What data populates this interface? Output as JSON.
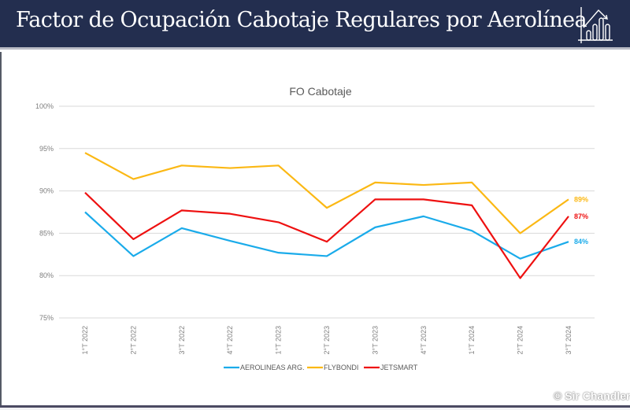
{
  "header": {
    "title": "Factor de Ocupación Cabotaje Regulares por Aerolínea",
    "icon": "chart-trend-icon"
  },
  "watermark": "© Sir Chandler",
  "chart_data": {
    "type": "line",
    "title": "FO Cabotaje",
    "xlabel": "",
    "ylabel": "",
    "ylim": [
      75,
      100
    ],
    "yticks": [
      75,
      80,
      85,
      90,
      95,
      100
    ],
    "ytick_labels": [
      "75%",
      "80%",
      "85%",
      "90%",
      "95%",
      "100%"
    ],
    "grid": true,
    "legend_position": "bottom",
    "categories": [
      "1°T 2022",
      "2°T 2022",
      "3°T 2022",
      "4°T 2022",
      "1°T 2023",
      "2°T 2023",
      "3°T 2023",
      "4°T 2023",
      "1°T 2024",
      "2°T 2024",
      "3°T 2024"
    ],
    "series": [
      {
        "name": "AEROLINEAS ARG.",
        "color": "#1aabea",
        "values": [
          87.5,
          82.3,
          85.6,
          84.1,
          82.7,
          82.3,
          85.7,
          87.0,
          85.3,
          82.0,
          84.0
        ],
        "end_label": "84%"
      },
      {
        "name": "FLYBONDI",
        "color": "#fbb814",
        "values": [
          94.5,
          91.4,
          93.0,
          92.7,
          93.0,
          88.0,
          91.0,
          90.7,
          91.0,
          85.0,
          89.0
        ],
        "end_label": "89%"
      },
      {
        "name": "JETSMART",
        "color": "#ee1010",
        "values": [
          89.8,
          84.3,
          87.7,
          87.3,
          86.3,
          84.0,
          89.0,
          89.0,
          88.3,
          79.7,
          87.0
        ],
        "end_label": "87%"
      }
    ]
  }
}
